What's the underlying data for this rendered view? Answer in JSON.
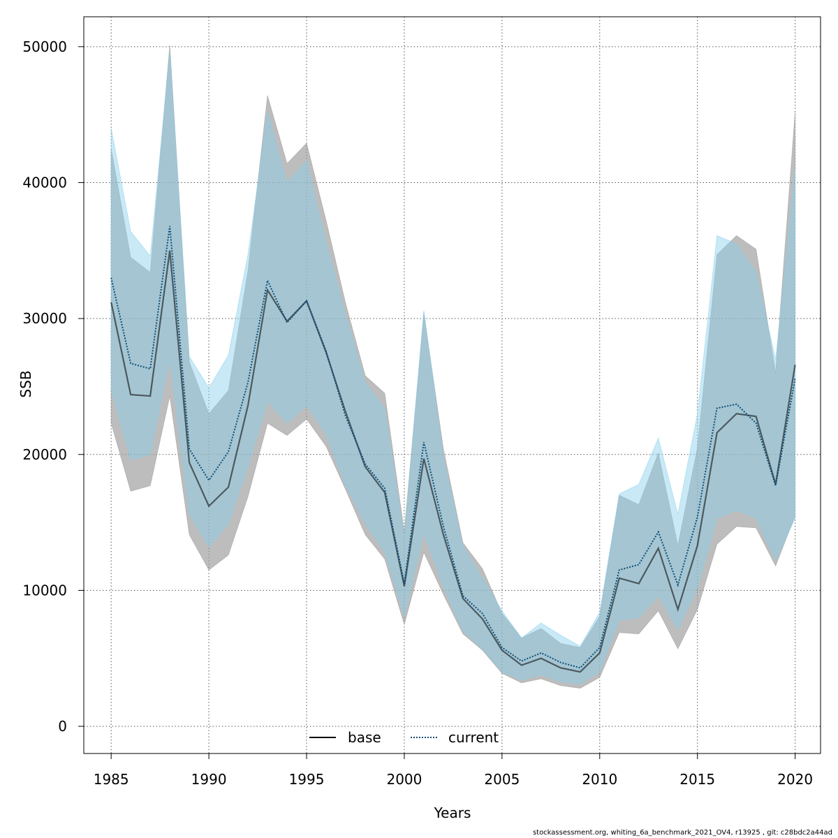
{
  "chart_data": {
    "type": "line",
    "xlabel": "Years",
    "ylabel": "SSB",
    "xlim": [
      1983.6,
      2021.3
    ],
    "ylim": [
      -2000,
      52200
    ],
    "x_ticks": [
      1985,
      1990,
      1995,
      2000,
      2005,
      2010,
      2015,
      2020
    ],
    "y_ticks": [
      0,
      10000,
      20000,
      30000,
      40000,
      50000
    ],
    "grid": true,
    "legend_position": "bottom-center",
    "x": [
      1985,
      1986,
      1987,
      1988,
      1989,
      1990,
      1991,
      1992,
      1993,
      1994,
      1995,
      1996,
      1997,
      1998,
      1999,
      2000,
      2001,
      2002,
      2003,
      2004,
      2005,
      2006,
      2007,
      2008,
      2009,
      2010,
      2011,
      2012,
      2013,
      2014,
      2015,
      2016,
      2017,
      2018,
      2019,
      2020
    ],
    "series": [
      {
        "name": "base",
        "color": "#000000",
        "band_color": "#999999",
        "values": [
          31200,
          24400,
          24300,
          35000,
          19400,
          16200,
          17600,
          23600,
          32100,
          29800,
          31300,
          27500,
          23100,
          19100,
          17200,
          10300,
          19700,
          14100,
          9400,
          7900,
          5600,
          4500,
          5000,
          4300,
          4000,
          5400,
          10900,
          10500,
          13100,
          8600,
          13300,
          21600,
          23000,
          22800,
          17800,
          26600
        ],
        "lower": [
          22300,
          17300,
          17700,
          24300,
          14100,
          11500,
          12600,
          16900,
          22300,
          21400,
          22600,
          20600,
          17400,
          14100,
          12300,
          7500,
          12800,
          9700,
          6800,
          5600,
          3900,
          3200,
          3500,
          3000,
          2800,
          3600,
          6900,
          6800,
          8500,
          5700,
          8600,
          13400,
          14700,
          14600,
          11800,
          15500
        ],
        "upper": [
          42500,
          34500,
          33400,
          50100,
          26800,
          23000,
          24700,
          33500,
          46400,
          41400,
          42900,
          37200,
          31100,
          25800,
          24500,
          14300,
          30400,
          20400,
          13500,
          11600,
          8300,
          6500,
          7200,
          6100,
          5800,
          8100,
          17000,
          16300,
          20100,
          13300,
          20500,
          34700,
          36100,
          35100,
          26000,
          45200
        ]
      },
      {
        "name": "current",
        "color": "#0a4f7a",
        "band_color": "#87ceeb",
        "values": [
          33000,
          26700,
          26300,
          36800,
          20400,
          18100,
          20200,
          25300,
          32800,
          29700,
          31300,
          27600,
          22800,
          19300,
          17500,
          10500,
          20900,
          14700,
          9600,
          8300,
          5800,
          4800,
          5400,
          4700,
          4300,
          5800,
          11500,
          11900,
          14300,
          10400,
          15400,
          23400,
          23700,
          22300,
          17700,
          25600
        ],
        "lower": [
          24800,
          19600,
          20000,
          27000,
          15600,
          13200,
          14900,
          19100,
          23900,
          22300,
          23600,
          21500,
          17700,
          14900,
          12800,
          8100,
          14200,
          10300,
          7000,
          5700,
          4000,
          3400,
          3800,
          3300,
          3100,
          4000,
          7800,
          8000,
          9600,
          7100,
          10200,
          15300,
          15900,
          15300,
          12200,
          15300
        ],
        "upper": [
          44000,
          36400,
          34600,
          49600,
          27200,
          24900,
          27300,
          34700,
          45200,
          40000,
          41600,
          35600,
          30300,
          25300,
          23400,
          13900,
          30600,
          19800,
          13300,
          10900,
          8500,
          6500,
          7600,
          6700,
          5900,
          8400,
          17100,
          17800,
          21200,
          15600,
          23000,
          36100,
          35500,
          33400,
          27000,
          41000
        ]
      }
    ]
  },
  "footer": "stockassessment.org, whiting_6a_benchmark_2021_OV4, r13925 , git: c28bdc2a44ad"
}
